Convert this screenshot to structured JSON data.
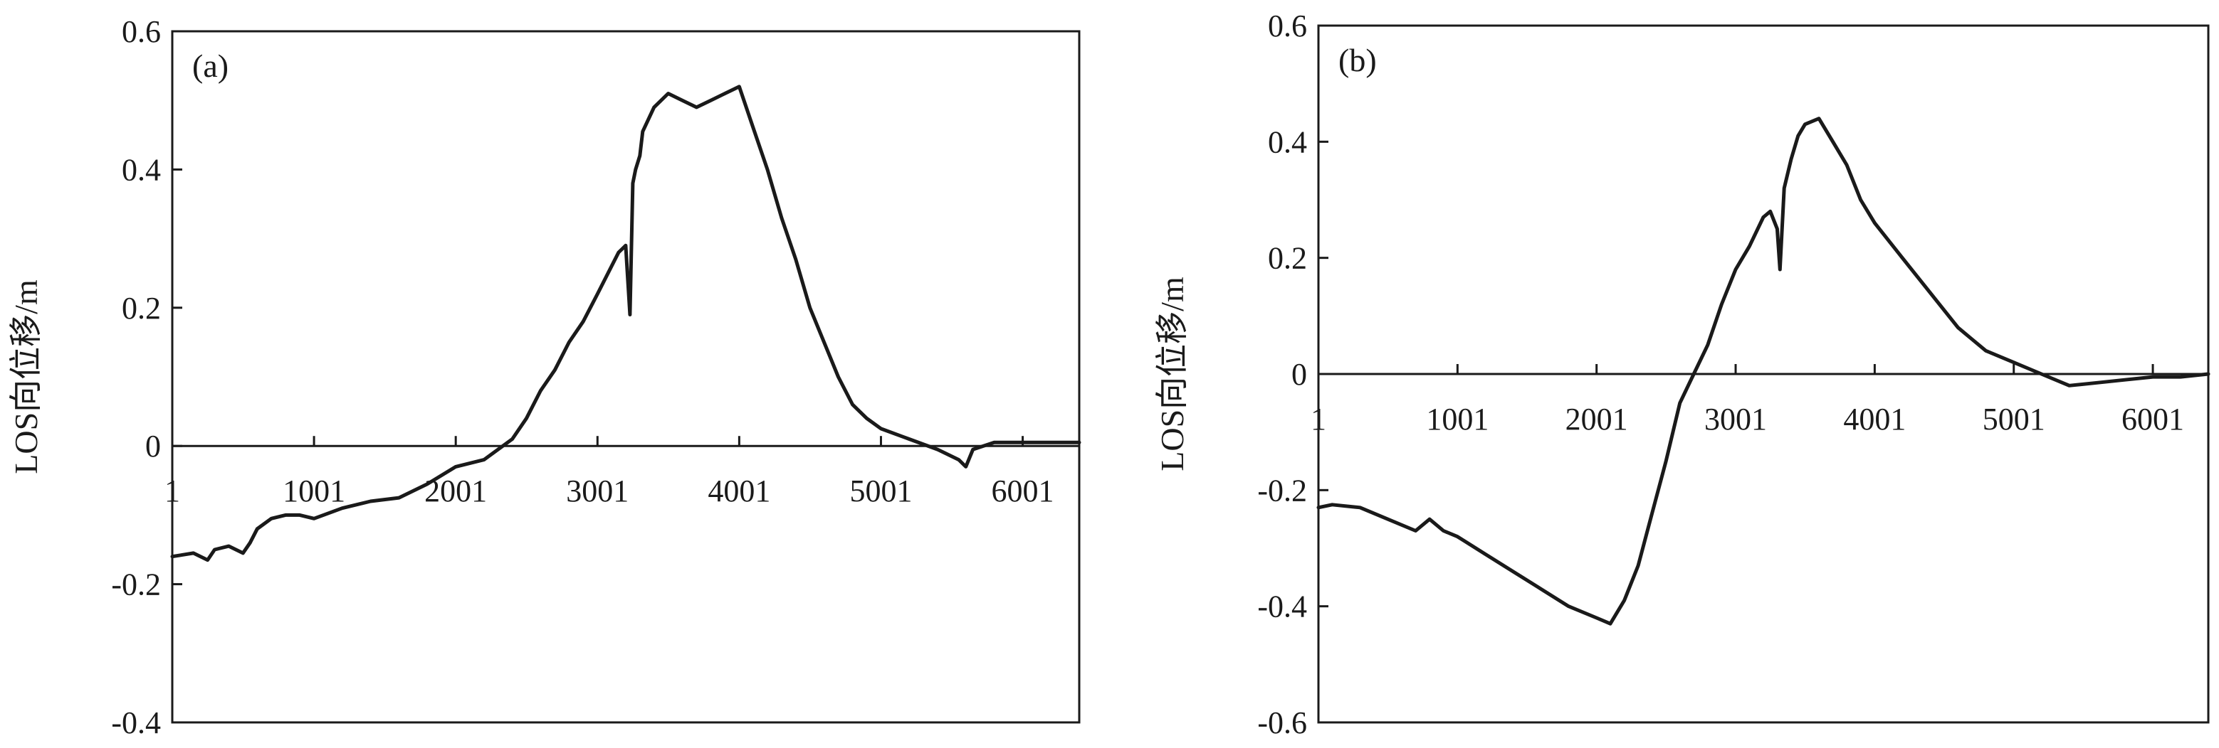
{
  "chart_data": [
    {
      "type": "line",
      "panel_label": "(a)",
      "ylabel": "LOS向位移/m",
      "ylim": [
        -0.4,
        0.6
      ],
      "yticks": [
        -0.4,
        -0.2,
        0,
        0.2,
        0.4,
        0.6
      ],
      "ytick_labels": [
        "-0.4",
        "-0.2",
        "0",
        "0.2",
        "0.4",
        "0.6"
      ],
      "xlim": [
        1,
        6400
      ],
      "xticks": [
        1,
        1001,
        2001,
        3001,
        4001,
        5001,
        6001
      ],
      "xtick_labels": [
        "1",
        "1001",
        "2001",
        "3001",
        "4001",
        "5001",
        "6001"
      ],
      "grid": false,
      "series": [
        {
          "color": "#1a1a1a",
          "x": [
            1,
            150,
            250,
            300,
            400,
            500,
            550,
            600,
            700,
            800,
            900,
            1001,
            1200,
            1400,
            1600,
            1800,
            2001,
            2200,
            2400,
            2500,
            2600,
            2700,
            2800,
            2900,
            3001,
            3100,
            3150,
            3200,
            3230,
            3250,
            3270,
            3300,
            3320,
            3400,
            3500,
            3600,
            3700,
            3800,
            3900,
            4001,
            4100,
            4200,
            4300,
            4400,
            4500,
            4600,
            4700,
            4800,
            4900,
            5001,
            5200,
            5400,
            5550,
            5600,
            5650,
            5800,
            6001,
            6200,
            6400
          ],
          "y": [
            -0.16,
            -0.155,
            -0.165,
            -0.15,
            -0.145,
            -0.155,
            -0.14,
            -0.12,
            -0.105,
            -0.1,
            -0.1,
            -0.105,
            -0.09,
            -0.08,
            -0.075,
            -0.055,
            -0.03,
            -0.02,
            0.01,
            0.04,
            0.08,
            0.11,
            0.15,
            0.18,
            0.22,
            0.26,
            0.28,
            0.29,
            0.19,
            0.38,
            0.4,
            0.42,
            0.455,
            0.49,
            0.51,
            0.5,
            0.49,
            0.5,
            0.51,
            0.52,
            0.46,
            0.4,
            0.33,
            0.27,
            0.2,
            0.15,
            0.1,
            0.06,
            0.04,
            0.025,
            0.01,
            -0.005,
            -0.02,
            -0.03,
            -0.005,
            0.005,
            0.005,
            0.005,
            0.005
          ]
        }
      ]
    },
    {
      "type": "line",
      "panel_label": "(b)",
      "ylabel": "LOS向位移/m",
      "ylim": [
        -0.6,
        0.6
      ],
      "yticks": [
        -0.6,
        -0.4,
        -0.2,
        0,
        0.2,
        0.4,
        0.6
      ],
      "ytick_labels": [
        "-0.6",
        "-0.4",
        "-0.2",
        "0",
        "0.2",
        "0.4",
        "0.6"
      ],
      "xlim": [
        1,
        6400
      ],
      "xticks": [
        1,
        1001,
        2001,
        3001,
        4001,
        5001,
        6001
      ],
      "xtick_labels": [
        "1",
        "1001",
        "2001",
        "3001",
        "4001",
        "5001",
        "6001"
      ],
      "grid": false,
      "series": [
        {
          "color": "#1a1a1a",
          "x": [
            1,
            100,
            300,
            500,
            700,
            800,
            900,
            1001,
            1200,
            1400,
            1600,
            1800,
            2001,
            2100,
            2200,
            2300,
            2400,
            2500,
            2600,
            2700,
            2800,
            2900,
            3001,
            3100,
            3200,
            3250,
            3300,
            3320,
            3350,
            3400,
            3450,
            3500,
            3600,
            3700,
            3800,
            3900,
            4001,
            4200,
            4400,
            4600,
            4650,
            4700,
            4800,
            5001,
            5200,
            5400,
            5600,
            5800,
            6001,
            6200,
            6400
          ],
          "y": [
            -0.23,
            -0.225,
            -0.23,
            -0.25,
            -0.27,
            -0.25,
            -0.27,
            -0.28,
            -0.31,
            -0.34,
            -0.37,
            -0.4,
            -0.42,
            -0.43,
            -0.39,
            -0.33,
            -0.24,
            -0.15,
            -0.05,
            0.0,
            0.05,
            0.12,
            0.18,
            0.22,
            0.27,
            0.28,
            0.25,
            0.18,
            0.32,
            0.37,
            0.41,
            0.43,
            0.44,
            0.4,
            0.36,
            0.3,
            0.26,
            0.2,
            0.14,
            0.08,
            0.07,
            0.06,
            0.04,
            0.02,
            0.0,
            -0.02,
            -0.015,
            -0.01,
            -0.005,
            -0.005,
            0.0
          ]
        }
      ]
    }
  ]
}
